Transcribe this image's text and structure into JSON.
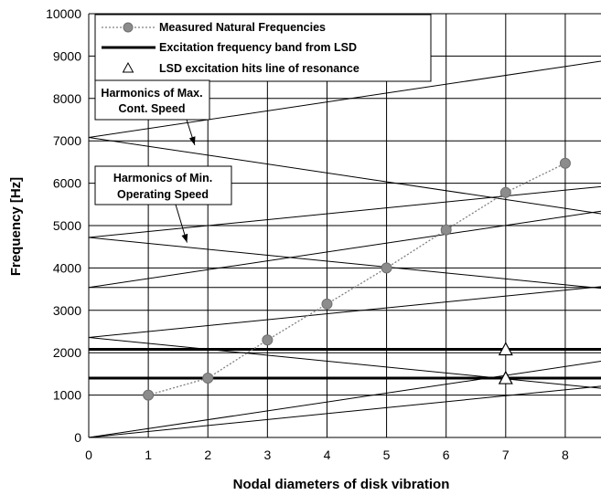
{
  "chart_data": {
    "type": "line",
    "title": "",
    "xlabel": "Nodal diameters of disk vibration",
    "ylabel": "Frequency [Hz]",
    "xlim": [
      0,
      8.6
    ],
    "ylim": [
      0,
      10000
    ],
    "x_ticks": [
      "0",
      "1",
      "2",
      "3",
      "4",
      "5",
      "6",
      "7",
      "8"
    ],
    "y_ticks": [
      "0",
      "1000",
      "2000",
      "3000",
      "4000",
      "5000",
      "6000",
      "7000",
      "8000",
      "9000",
      "10000"
    ],
    "grid": true,
    "legend_position": "top",
    "series": [
      {
        "name": "Measured Natural Frequencies",
        "style": "dotted-line-circle-markers",
        "color": "#7f7f7f",
        "x": [
          1,
          2,
          3,
          4,
          5,
          6,
          7,
          8
        ],
        "y": [
          1000,
          1400,
          2300,
          3150,
          4000,
          4900,
          5780,
          6470
        ]
      },
      {
        "name": "Excitation frequency band from LSD",
        "style": "thick-horizontal-lines",
        "color": "#000000",
        "y": [
          1400,
          2080
        ]
      },
      {
        "name": "LSD excitation hits line of resonance",
        "style": "triangle-markers",
        "color": "#000000",
        "x": [
          7,
          7
        ],
        "y": [
          1400,
          2080
        ]
      }
    ],
    "resonance_lines": [
      {
        "x": [
          0,
          8.6
        ],
        "y": [
          7080,
          8880
        ]
      },
      {
        "x": [
          0,
          8.6
        ],
        "y": [
          7080,
          5280
        ]
      },
      {
        "x": [
          0,
          8.6
        ],
        "y": [
          4720,
          5920
        ]
      },
      {
        "x": [
          0,
          8.6
        ],
        "y": [
          4720,
          3520
        ]
      },
      {
        "x": [
          0,
          8.6
        ],
        "y": [
          3540,
          5340
        ]
      },
      {
        "x": [
          0,
          8.6
        ],
        "y": [
          3540,
          3540
        ]
      },
      {
        "x": [
          0,
          8.6
        ],
        "y": [
          2360,
          3560
        ]
      },
      {
        "x": [
          0,
          8.6
        ],
        "y": [
          2360,
          1160
        ]
      },
      {
        "x": [
          0,
          8.6
        ],
        "y": [
          0,
          1800
        ]
      },
      {
        "x": [
          0,
          8.6
        ],
        "y": [
          0,
          1210
        ]
      }
    ],
    "annotations": [
      {
        "text": [
          "Harmonics of Max.",
          "Cont. Speed"
        ],
        "points_to": [
          1.78,
          6900
        ]
      },
      {
        "text": [
          "Harmonics of Min.",
          "Operating Speed"
        ],
        "points_to": [
          1.65,
          4600
        ]
      }
    ]
  }
}
